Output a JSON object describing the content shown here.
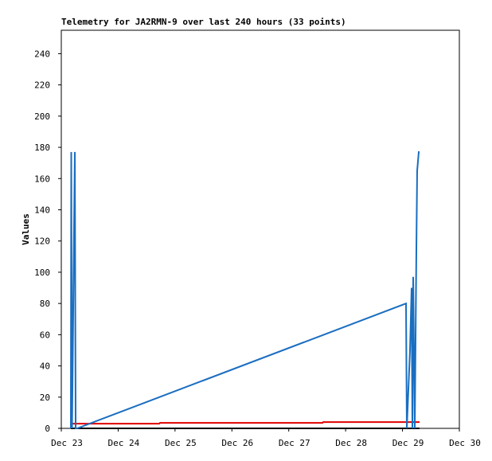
{
  "chart_data": {
    "type": "line",
    "title": "Telemetry for JA2RMN-9 over last 240 hours (33 points)",
    "y_label": "Values",
    "xlim": [
      23,
      30
    ],
    "ylim": [
      0,
      255
    ],
    "xticks": [
      {
        "value": 23,
        "label": "Dec 23"
      },
      {
        "value": 24,
        "label": "Dec 24"
      },
      {
        "value": 25,
        "label": "Dec 25"
      },
      {
        "value": 26,
        "label": "Dec 26"
      },
      {
        "value": 27,
        "label": "Dec 27"
      },
      {
        "value": 28,
        "label": "Dec 28"
      },
      {
        "value": 29,
        "label": "Dec 29"
      },
      {
        "value": 30,
        "label": "Dec 30"
      }
    ],
    "yticks": [
      0,
      20,
      40,
      60,
      80,
      100,
      120,
      140,
      160,
      180,
      200,
      220,
      240
    ],
    "series": [
      {
        "color": "#000000",
        "x": [
          23.168,
          29.3
        ],
        "values": [
          0,
          0
        ]
      },
      {
        "color": "#e00000",
        "x": [
          23.182,
          24.722,
          24.736,
          27.592,
          27.606,
          29.3
        ],
        "values": [
          3,
          3,
          3.5,
          3.5,
          4,
          4
        ]
      },
      {
        "color": "#1a6ec0",
        "x": [
          23.168,
          23.175,
          23.189,
          23.238,
          23.252,
          23.28,
          29.062,
          29.076,
          29.132,
          29.16,
          29.174,
          29.188,
          29.216,
          29.244,
          29.258,
          29.286,
          29.3
        ],
        "values": [
          0,
          177,
          0,
          177,
          0,
          0,
          80,
          0,
          50,
          90,
          0,
          97,
          0,
          115,
          165,
          177,
          177
        ]
      }
    ]
  }
}
